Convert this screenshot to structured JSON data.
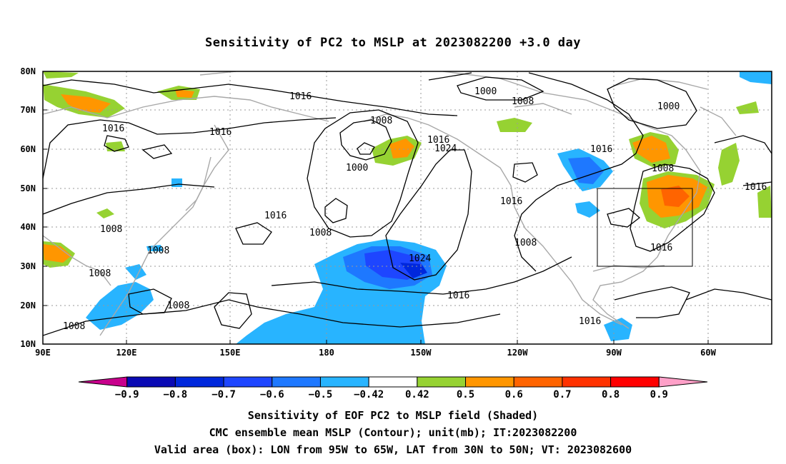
{
  "title": "Sensitivity of PC2 to MSLP at 2023082200 +3.0 day",
  "map": {
    "lat_labels": [
      "80N",
      "70N",
      "60N",
      "50N",
      "40N",
      "30N",
      "20N",
      "10N"
    ],
    "lon_labels": [
      "90E",
      "120E",
      "150E",
      "180",
      "150W",
      "120W",
      "90W",
      "60W"
    ],
    "contour_labels": [
      {
        "text": "1016"
      },
      {
        "text": "1000"
      },
      {
        "text": "1008"
      },
      {
        "text": "1000"
      },
      {
        "text": "1016"
      },
      {
        "text": "1016"
      },
      {
        "text": "1008"
      },
      {
        "text": "1016"
      },
      {
        "text": "1024"
      },
      {
        "text": "1000"
      },
      {
        "text": "1016"
      },
      {
        "text": "1008"
      },
      {
        "text": "1016"
      },
      {
        "text": "1016"
      },
      {
        "text": "1016"
      },
      {
        "text": "1008"
      },
      {
        "text": "1008"
      },
      {
        "text": "1024"
      },
      {
        "text": "1016"
      },
      {
        "text": "1008"
      },
      {
        "text": "1016"
      },
      {
        "text": "1008"
      },
      {
        "text": "1008"
      },
      {
        "text": "1008"
      },
      {
        "text": "1008"
      },
      {
        "text": "1016"
      }
    ]
  },
  "colorbar": {
    "colors": [
      "#c8008c",
      "#0a0ab4",
      "#0028dc",
      "#1e46ff",
      "#1e78ff",
      "#28b4ff",
      "#ffffff",
      "#96d232",
      "#ff9600",
      "#ff6400",
      "#ff3200",
      "#ff0000",
      "#ffa0c8"
    ],
    "labels": [
      "−0.9",
      "−0.8",
      "−0.7",
      "−0.6",
      "−0.5",
      "−0.42",
      "0.42",
      "0.5",
      "0.6",
      "0.7",
      "0.8",
      "0.9"
    ]
  },
  "caption": {
    "line1": "Sensitivity of EOF PC2 to MSLP field (Shaded)",
    "line2": "CMC ensemble mean MSLP (Contour); unit(mb); IT:2023082200",
    "line3": "Valid area (box): LON from 95W to 65W, LAT from 30N to 50N; VT: 2023082600"
  }
}
